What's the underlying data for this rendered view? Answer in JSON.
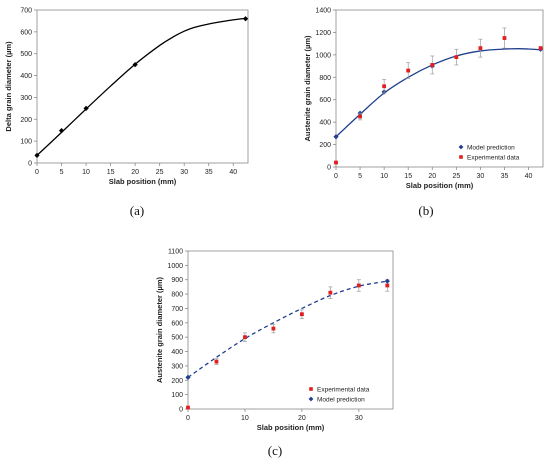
{
  "chart_data": [
    {
      "type": "line",
      "caption": "(a)",
      "xlabel": "Slab position (mm)",
      "ylabel": "Delta grain diameter (µm)",
      "xlim": [
        0,
        43
      ],
      "ylim": [
        0,
        700
      ],
      "xticks": [
        0,
        5,
        10,
        15,
        20,
        25,
        30,
        35,
        40
      ],
      "yticks": [
        0,
        100,
        200,
        300,
        400,
        500,
        600,
        700
      ],
      "grid": false,
      "series": [
        {
          "kind": "points",
          "marker": "diamond",
          "color": "#000000",
          "x": [
            0,
            5,
            10,
            20,
            42.5
          ],
          "y": [
            35,
            148,
            250,
            450,
            660
          ]
        },
        {
          "kind": "curve",
          "color": "#000000",
          "dashed": false,
          "x": [
            0,
            5,
            10,
            15,
            20,
            25,
            28,
            30,
            32,
            35,
            38,
            40,
            42.5
          ],
          "y": [
            35,
            140,
            247,
            352,
            452,
            538,
            580,
            603,
            620,
            636,
            648,
            655,
            662
          ]
        }
      ]
    },
    {
      "type": "line",
      "caption": "(b)",
      "xlabel": "Slab position (mm)",
      "ylabel": "Austenite grain diameter (µm)",
      "xlim": [
        0,
        43
      ],
      "ylim": [
        0,
        1400
      ],
      "xticks": [
        0,
        5,
        10,
        15,
        20,
        25,
        30,
        35,
        40
      ],
      "yticks": [
        0,
        200,
        400,
        600,
        800,
        1000,
        1200,
        1400
      ],
      "grid": false,
      "legend_position": "bottom-right",
      "series": [
        {
          "name": "Model prediction",
          "kind": "points",
          "marker": "diamond",
          "color": "#1f3f8f",
          "x": [
            0,
            5,
            10,
            20,
            42.5
          ],
          "y": [
            270,
            480,
            670,
            900,
            1050
          ]
        },
        {
          "name": "Experimental data",
          "kind": "points",
          "marker": "square",
          "color": "#e02020",
          "x": [
            0,
            5,
            10,
            15,
            20,
            25,
            30,
            35,
            42.5
          ],
          "y": [
            40,
            450,
            720,
            860,
            910,
            980,
            1060,
            1150,
            1060
          ],
          "err": [
            0,
            30,
            60,
            70,
            80,
            70,
            80,
            90,
            0
          ]
        },
        {
          "kind": "curve",
          "color": "#1f3f8f",
          "dashed": false,
          "x": [
            0,
            5,
            10,
            15,
            20,
            25,
            30,
            35,
            38,
            40,
            42.5
          ],
          "y": [
            270,
            470,
            660,
            800,
            910,
            990,
            1035,
            1052,
            1055,
            1052,
            1045
          ]
        }
      ]
    },
    {
      "type": "line",
      "caption": "(c)",
      "xlabel": "Slab position (mm)",
      "ylabel": "Austenite grain diameter (µm)",
      "xlim": [
        0,
        36
      ],
      "ylim": [
        0,
        1100
      ],
      "xticks": [
        0,
        10,
        20,
        30
      ],
      "yticks": [
        0,
        100,
        200,
        300,
        400,
        500,
        600,
        700,
        800,
        900,
        1000,
        1100
      ],
      "grid": false,
      "legend_position": "bottom-right",
      "series": [
        {
          "name": "Experimental data",
          "kind": "points",
          "marker": "square",
          "color": "#e02020",
          "x": [
            0,
            5,
            10,
            15,
            20,
            25,
            30,
            35
          ],
          "y": [
            10,
            330,
            500,
            560,
            660,
            810,
            860,
            860
          ],
          "err": [
            0,
            20,
            30,
            30,
            30,
            40,
            40,
            40
          ]
        },
        {
          "name": "Model prediction",
          "kind": "points",
          "marker": "diamond",
          "color": "#1f3f8f",
          "x": [
            0,
            35
          ],
          "y": [
            220,
            890
          ]
        },
        {
          "kind": "curve",
          "color": "#1f3f8f",
          "dashed": true,
          "x": [
            0,
            5,
            10,
            15,
            20,
            25,
            30,
            35
          ],
          "y": [
            220,
            360,
            490,
            600,
            700,
            790,
            855,
            890
          ]
        }
      ]
    }
  ]
}
